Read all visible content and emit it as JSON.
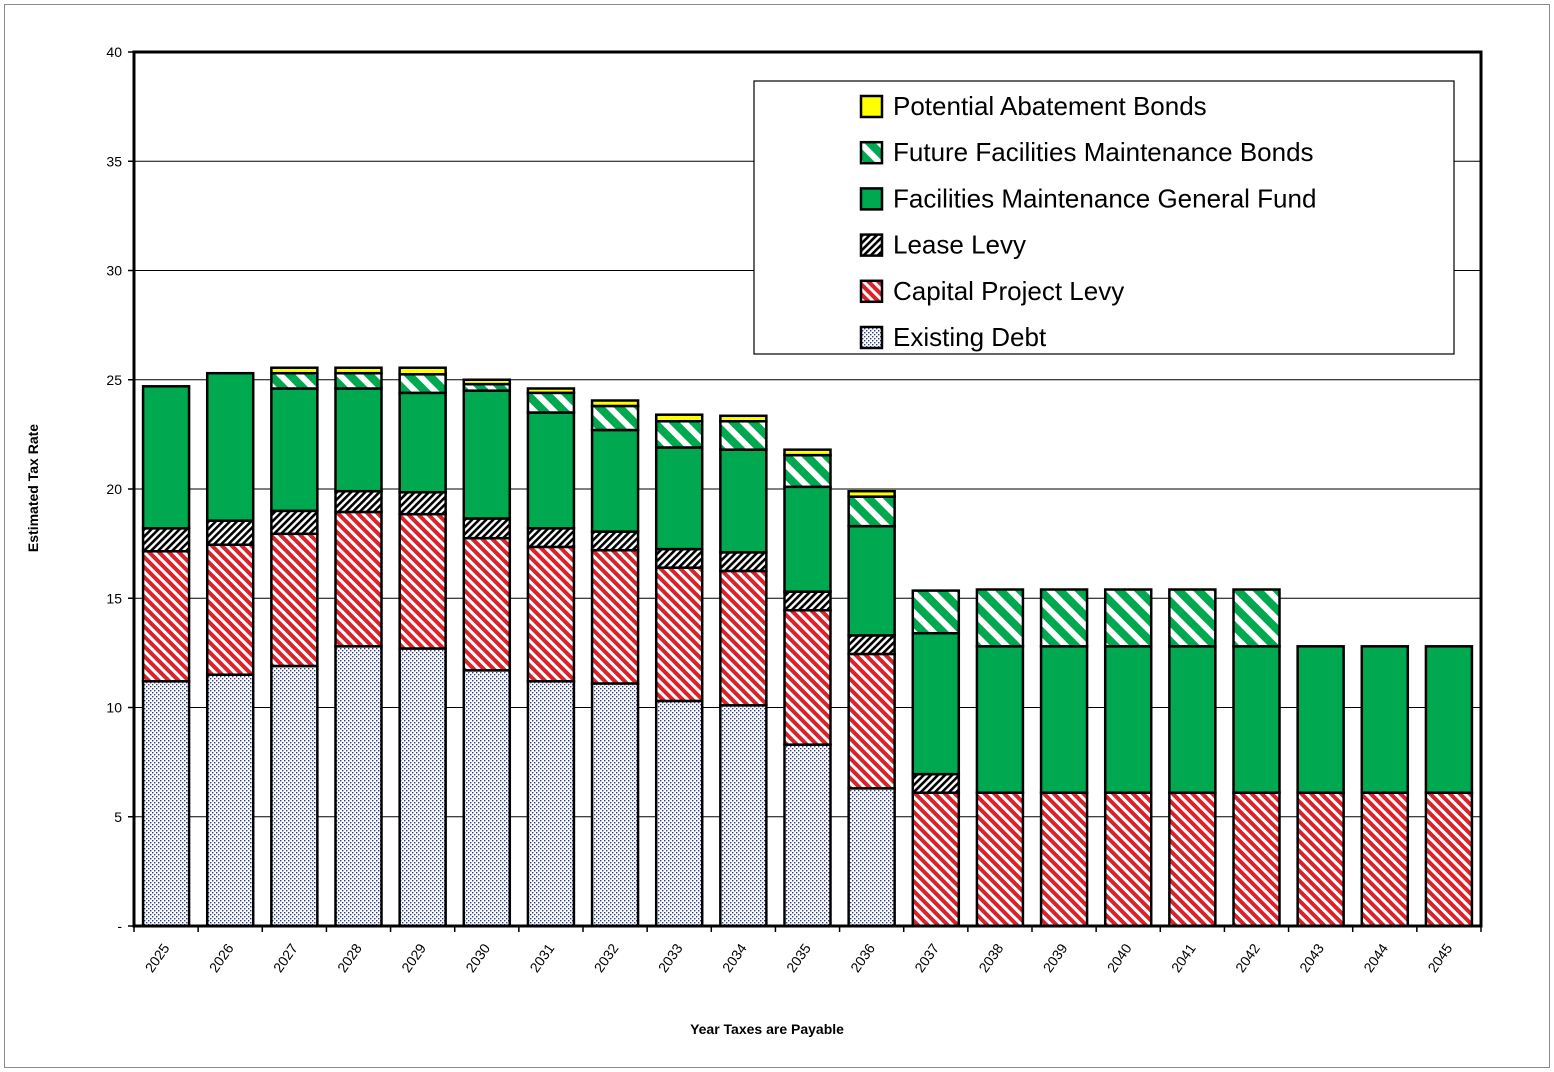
{
  "chart_data": {
    "type": "bar",
    "stacked": true,
    "title": "",
    "xlabel": "Year Taxes are Payable",
    "ylabel": "Estimated Tax Rate",
    "ylim": [
      0,
      40
    ],
    "yticks": [
      0,
      5,
      10,
      15,
      20,
      25,
      30,
      35,
      40
    ],
    "ytick_labels": [
      "-",
      "5",
      "10",
      "15",
      "20",
      "25",
      "30",
      "35",
      "40"
    ],
    "grid": "horizontal",
    "legend_position": "top-right",
    "categories": [
      "2025",
      "2026",
      "2027",
      "2028",
      "2029",
      "2030",
      "2031",
      "2032",
      "2033",
      "2034",
      "2035",
      "2036",
      "2037",
      "2038",
      "2039",
      "2040",
      "2041",
      "2042",
      "2043",
      "2044",
      "2045"
    ],
    "series": [
      {
        "name": "Existing Debt",
        "color": "#e8ecf8",
        "pattern": "dots",
        "values": [
          11.2,
          11.5,
          11.9,
          12.8,
          12.7,
          11.7,
          11.2,
          11.1,
          10.3,
          10.1,
          8.3,
          6.3,
          0,
          0,
          0,
          0,
          0,
          0,
          0,
          0,
          0
        ]
      },
      {
        "name": "Capital Project Levy",
        "color": "#d9222a",
        "pattern": "diagonal-stripes",
        "values": [
          5.95,
          5.95,
          6.05,
          6.15,
          6.15,
          6.05,
          6.15,
          6.1,
          6.1,
          6.15,
          6.15,
          6.15,
          6.1,
          6.1,
          6.1,
          6.1,
          6.1,
          6.1,
          6.1,
          6.1,
          6.1
        ]
      },
      {
        "name": "Lease Levy",
        "color": "#000000",
        "pattern": "hatch",
        "values": [
          1.05,
          1.1,
          1.05,
          0.95,
          1.0,
          0.9,
          0.85,
          0.85,
          0.85,
          0.85,
          0.85,
          0.85,
          0.85,
          0,
          0,
          0,
          0,
          0,
          0,
          0,
          0
        ]
      },
      {
        "name": "Facilities Maintenance General Fund",
        "color": "#00a94f",
        "pattern": "solid",
        "values": [
          6.5,
          6.75,
          5.6,
          4.7,
          4.55,
          5.85,
          5.3,
          4.65,
          4.65,
          4.7,
          4.8,
          5.0,
          6.45,
          6.7,
          6.7,
          6.7,
          6.7,
          6.7,
          6.7,
          6.7,
          6.7
        ]
      },
      {
        "name": "Future Facilities Maintenance Bonds",
        "color": "#00a94f",
        "pattern": "green-stripes",
        "values": [
          0,
          0,
          0.7,
          0.7,
          0.85,
          0.3,
          0.9,
          1.1,
          1.2,
          1.3,
          1.45,
          1.35,
          1.95,
          2.6,
          2.6,
          2.6,
          2.6,
          2.6,
          0,
          0,
          0
        ]
      },
      {
        "name": "Potential Abatement Bonds",
        "color": "#ffff00",
        "pattern": "solid",
        "values": [
          0,
          0,
          0.25,
          0.25,
          0.3,
          0.2,
          0.2,
          0.25,
          0.3,
          0.25,
          0.25,
          0.25,
          0,
          0,
          0,
          0,
          0,
          0,
          0,
          0,
          0
        ]
      }
    ]
  }
}
